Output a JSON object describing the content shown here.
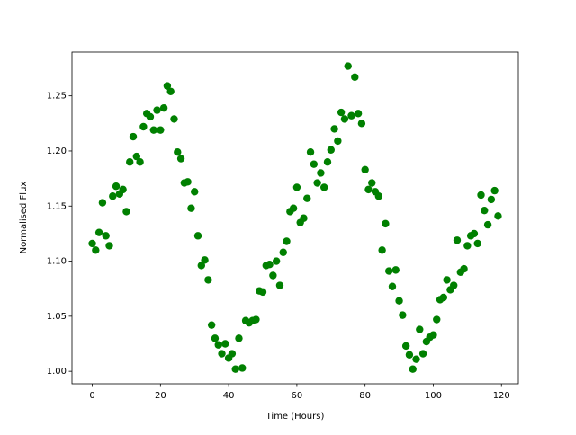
{
  "chart_data": {
    "type": "scatter",
    "xlabel": "Time (Hours)",
    "ylabel": "Normalised Flux",
    "color": "green",
    "x": [
      0,
      1,
      2,
      3,
      4,
      5,
      6,
      7,
      8,
      9,
      10,
      11,
      12,
      13,
      14,
      15,
      16,
      17,
      18,
      19,
      20,
      21,
      22,
      23,
      24,
      25,
      26,
      27,
      28,
      29,
      30,
      31,
      32,
      33,
      34,
      35,
      36,
      37,
      38,
      39,
      40,
      41,
      42,
      43,
      44,
      45,
      46,
      47,
      48,
      49,
      50,
      51,
      52,
      53,
      54,
      55,
      56,
      57,
      58,
      59,
      60,
      61,
      62,
      63,
      64,
      65,
      66,
      67,
      68,
      69,
      70,
      71,
      72,
      73,
      74,
      75,
      76,
      77,
      78,
      79,
      80,
      81,
      82,
      83,
      84,
      85,
      86,
      87,
      88,
      89,
      90,
      91,
      92,
      93,
      94,
      95,
      96,
      97,
      98,
      99,
      100,
      101,
      102,
      103,
      104,
      105,
      106,
      107,
      108,
      109,
      110,
      111,
      112,
      113,
      114,
      115,
      116,
      117,
      118,
      119
    ],
    "values": [
      1.116,
      1.11,
      1.126,
      1.153,
      1.123,
      1.114,
      1.159,
      1.168,
      1.161,
      1.165,
      1.145,
      1.19,
      1.213,
      1.195,
      1.19,
      1.222,
      1.234,
      1.231,
      1.219,
      1.237,
      1.219,
      1.239,
      1.259,
      1.254,
      1.229,
      1.199,
      1.193,
      1.171,
      1.172,
      1.148,
      1.163,
      1.123,
      1.096,
      1.101,
      1.083,
      1.042,
      1.03,
      1.024,
      1.016,
      1.025,
      1.012,
      1.016,
      1.002,
      1.03,
      1.003,
      1.046,
      1.044,
      1.046,
      1.047,
      1.073,
      1.072,
      1.096,
      1.097,
      1.087,
      1.1,
      1.078,
      1.108,
      1.118,
      1.145,
      1.148,
      1.167,
      1.135,
      1.139,
      1.157,
      1.199,
      1.188,
      1.171,
      1.18,
      1.167,
      1.19,
      1.201,
      1.22,
      1.209,
      1.235,
      1.229,
      1.277,
      1.232,
      1.267,
      1.234,
      1.225,
      1.183,
      1.165,
      1.171,
      1.163,
      1.159,
      1.11,
      1.134,
      1.091,
      1.077,
      1.092,
      1.064,
      1.051,
      1.023,
      1.015,
      1.002,
      1.011,
      1.038,
      1.016,
      1.027,
      1.031,
      1.033,
      1.047,
      1.065,
      1.067,
      1.083,
      1.074,
      1.078,
      1.119,
      1.09,
      1.093,
      1.114,
      1.123,
      1.125,
      1.116,
      1.16,
      1.146,
      1.133,
      1.156,
      1.164,
      1.141
    ],
    "xlim": [
      -5.95,
      124.95
    ],
    "xticks": [
      0,
      20,
      40,
      60,
      80,
      100,
      120
    ],
    "ylim": [
      0.9887,
      1.2897
    ],
    "yticks": [
      {
        "value": 1.0,
        "label": "1.00"
      },
      {
        "value": 1.05,
        "label": "1.05"
      },
      {
        "value": 1.1,
        "label": "1.10"
      },
      {
        "value": 1.15,
        "label": "1.15"
      },
      {
        "value": 1.2,
        "label": "1.20"
      },
      {
        "value": 1.25,
        "label": "1.25"
      }
    ],
    "grid": false
  }
}
